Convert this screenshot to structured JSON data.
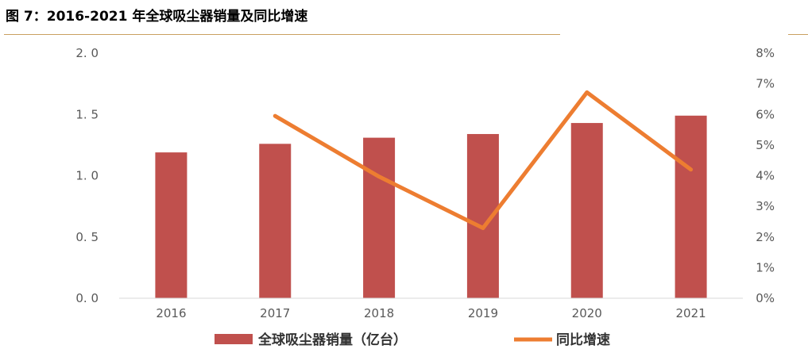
{
  "figure": {
    "title": "图 7：2016-2021 年全球吸尘器销量及同比增速"
  },
  "chart_data": {
    "type": "bar+line",
    "title": "图 7：2016-2021 年全球吸尘器销量及同比增速",
    "categories": [
      "2016",
      "2017",
      "2018",
      "2019",
      "2020",
      "2021"
    ],
    "series": [
      {
        "name": "全球吸尘器销量（亿台）",
        "type": "bar",
        "axis": "left",
        "color": "#c0504d",
        "values": [
          1.19,
          1.26,
          1.31,
          1.34,
          1.43,
          1.49
        ]
      },
      {
        "name": "同比增速",
        "type": "line",
        "axis": "right",
        "color": "#ed7d31",
        "values": [
          null,
          5.95,
          3.97,
          2.29,
          6.72,
          4.2
        ]
      }
    ],
    "y_left": {
      "min": 0,
      "max": 2.0,
      "ticks": [
        "0. 0",
        "0. 5",
        "1. 0",
        "1. 5",
        "2. 0"
      ]
    },
    "y_right": {
      "min": 0,
      "max": 8,
      "ticks": [
        "0%",
        "1%",
        "2%",
        "3%",
        "4%",
        "5%",
        "6%",
        "7%",
        "8%"
      ]
    },
    "grid": false,
    "legend": {
      "position": "bottom",
      "items": [
        "全球吸尘器销量（亿台）",
        "同比增速"
      ]
    }
  }
}
